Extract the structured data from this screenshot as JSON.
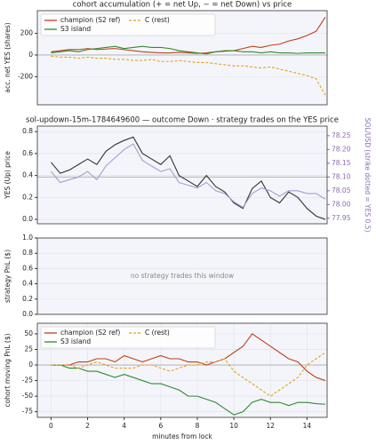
{
  "chart_data": [
    {
      "type": "line",
      "title": "cohort accumulation (+ = net Up, − = net Down) vs price",
      "ylabel": "acc. net YES (shares)",
      "xlim": [
        -0.75,
        15.1
      ],
      "ylim": [
        -460,
        410
      ],
      "yticks": [
        -200,
        0,
        200
      ],
      "grid": true,
      "facecolor": "#f4f5fb",
      "reference_lines": [
        {
          "axis": "y",
          "value": 0
        }
      ],
      "legend": "upper left",
      "legend_columns": 2,
      "x": [
        0,
        0.5,
        1,
        1.5,
        2,
        2.5,
        3,
        3.5,
        4,
        4.5,
        5,
        5.5,
        6,
        6.5,
        7,
        7.5,
        8,
        8.5,
        9,
        9.5,
        10,
        10.5,
        11,
        11.5,
        12,
        12.5,
        13,
        13.5,
        14,
        14.5,
        15
      ],
      "series": [
        {
          "name": "champion (S2 ref)",
          "color": "#bf4119",
          "linestyle": "solid",
          "values": [
            30,
            40,
            50,
            50,
            60,
            50,
            55,
            60,
            50,
            40,
            30,
            25,
            20,
            20,
            25,
            20,
            15,
            20,
            30,
            35,
            40,
            60,
            80,
            70,
            90,
            100,
            130,
            150,
            180,
            220,
            350
          ]
        },
        {
          "name": "S3 island",
          "color": "#2e8b2e",
          "linestyle": "solid",
          "values": [
            20,
            30,
            40,
            30,
            50,
            60,
            70,
            80,
            60,
            70,
            80,
            70,
            70,
            60,
            40,
            30,
            20,
            10,
            30,
            40,
            40,
            30,
            30,
            20,
            30,
            20,
            20,
            15,
            20,
            20,
            20
          ]
        },
        {
          "name": "C (rest)",
          "color": "#e3a21a",
          "linestyle": "dashed",
          "values": [
            -10,
            -20,
            -20,
            -30,
            -20,
            -30,
            -30,
            -40,
            -40,
            -50,
            -50,
            -40,
            -60,
            -60,
            -50,
            -60,
            -70,
            -70,
            -80,
            -90,
            -100,
            -100,
            -110,
            -120,
            -110,
            -130,
            -150,
            -170,
            -190,
            -220,
            -370
          ]
        }
      ]
    },
    {
      "type": "line",
      "title": "sol-updown-15m-1784649600 — outcome Down · strategy trades on the YES price",
      "ylabel": "YES (Up) price",
      "y2label": "SOL/USD (strike dotted = YES 0.5)",
      "y2color": "#8a6bb3",
      "xlim": [
        -0.75,
        15.1
      ],
      "ylim": [
        -0.04,
        0.85
      ],
      "yticks": [
        {
          "value": 0,
          "label": "0.0"
        },
        {
          "value": 0.2,
          "label": "0.2"
        },
        {
          "value": 0.4,
          "label": "0.4"
        },
        {
          "value": 0.6,
          "label": "0.6"
        },
        {
          "value": 0.8,
          "label": "0.8"
        }
      ],
      "y2lim": [
        77.93,
        78.285
      ],
      "y2ticks": [
        77.95,
        {
          "value": 78,
          "label": "78.00"
        },
        78.05,
        {
          "value": 78.1,
          "label": "78.10"
        },
        78.15,
        {
          "value": 78.2,
          "label": "78.20"
        },
        78.25
      ],
      "grid": true,
      "facecolor": "#f4f5fb",
      "reference_lines": [
        {
          "axis": "y2",
          "value": 78.1
        }
      ],
      "x": [
        0,
        0.5,
        1,
        1.5,
        2,
        2.5,
        3,
        3.5,
        4,
        4.5,
        5,
        5.5,
        6,
        6.5,
        7,
        7.5,
        8,
        8.5,
        9,
        9.5,
        10,
        10.5,
        11,
        11.5,
        12,
        12.5,
        13,
        13.5,
        14,
        14.5,
        15
      ],
      "series": [
        {
          "name": "YES",
          "color": "#333333",
          "linestyle": "solid",
          "values": [
            0.52,
            0.42,
            0.45,
            0.5,
            0.55,
            0.5,
            0.62,
            0.68,
            0.72,
            0.75,
            0.6,
            0.55,
            0.5,
            0.58,
            0.4,
            0.35,
            0.3,
            0.4,
            0.3,
            0.25,
            0.15,
            0.1,
            0.28,
            0.35,
            0.2,
            0.15,
            0.25,
            0.2,
            0.1,
            0.03,
            0.0
          ]
        },
        {
          "name": "SOL/USD",
          "color": "#a99bcf",
          "linestyle": "solid",
          "axis": "y2",
          "values": [
            78.12,
            78.08,
            78.09,
            78.1,
            78.12,
            78.09,
            78.14,
            78.17,
            78.2,
            78.22,
            78.16,
            78.14,
            78.12,
            78.13,
            78.08,
            78.07,
            78.06,
            78.08,
            78.05,
            78.04,
            78.01,
            77.99,
            78.04,
            78.06,
            78.05,
            78.03,
            78.05,
            78.05,
            78.04,
            78.04,
            78.02
          ]
        }
      ]
    },
    {
      "type": "line",
      "ylabel": "strategy PnL ($)",
      "annotation": "no strategy trades this window",
      "xlim": [
        -0.75,
        15.1
      ],
      "ylim": [
        0,
        1
      ],
      "yticks": [
        {
          "value": 0,
          "label": "0.0"
        },
        {
          "value": 0.2,
          "label": "0.2"
        },
        {
          "value": 0.4,
          "label": "0.4"
        },
        {
          "value": 0.6,
          "label": "0.6"
        },
        {
          "value": 0.8,
          "label": "0.8"
        },
        {
          "value": 1,
          "label": "1.0"
        }
      ],
      "grid": true,
      "facecolor": "#f4f5fb",
      "x": [],
      "series": []
    },
    {
      "type": "line",
      "ylabel": "cohort moving PnL ($)",
      "xlabel": "minutes from lock",
      "xlim": [
        -0.75,
        15.1
      ],
      "xticks": [
        0,
        2,
        4,
        6,
        8,
        10,
        12,
        14
      ],
      "ylim": [
        -84,
        67
      ],
      "yticks": [
        -75,
        -50,
        -25,
        0,
        25,
        50
      ],
      "grid": true,
      "facecolor": "#f4f5fb",
      "reference_lines": [
        {
          "axis": "y",
          "value": 0
        }
      ],
      "legend": "upper left",
      "legend_columns": 2,
      "x": [
        0,
        0.5,
        1,
        1.5,
        2,
        2.5,
        3,
        3.5,
        4,
        4.5,
        5,
        5.5,
        6,
        6.5,
        7,
        7.5,
        8,
        8.5,
        9,
        9.5,
        10,
        10.5,
        11,
        11.5,
        12,
        12.5,
        13,
        13.5,
        14,
        14.5,
        15
      ],
      "series": [
        {
          "name": "champion (S2 ref)",
          "color": "#bf4119",
          "linestyle": "solid",
          "values": [
            0,
            0,
            0,
            5,
            5,
            10,
            10,
            5,
            15,
            10,
            5,
            10,
            15,
            10,
            10,
            5,
            5,
            0,
            5,
            10,
            20,
            30,
            50,
            40,
            30,
            20,
            10,
            5,
            -10,
            -20,
            -25
          ]
        },
        {
          "name": "S3 island",
          "color": "#2e8b2e",
          "linestyle": "solid",
          "values": [
            0,
            0,
            -5,
            -5,
            -10,
            -10,
            -15,
            -20,
            -15,
            -20,
            -25,
            -30,
            -30,
            -35,
            -40,
            -50,
            -50,
            -55,
            -60,
            -70,
            -80,
            -75,
            -60,
            -55,
            -60,
            -60,
            -65,
            -60,
            -60,
            -62,
            -63
          ]
        },
        {
          "name": "C (rest)",
          "color": "#e3a21a",
          "linestyle": "dashed",
          "values": [
            0,
            0,
            0,
            -5,
            0,
            5,
            0,
            -5,
            -5,
            -5,
            0,
            0,
            -5,
            -10,
            -5,
            0,
            0,
            5,
            5,
            10,
            -10,
            -20,
            -30,
            -40,
            -50,
            -40,
            -30,
            -20,
            0,
            10,
            20
          ]
        }
      ]
    }
  ]
}
